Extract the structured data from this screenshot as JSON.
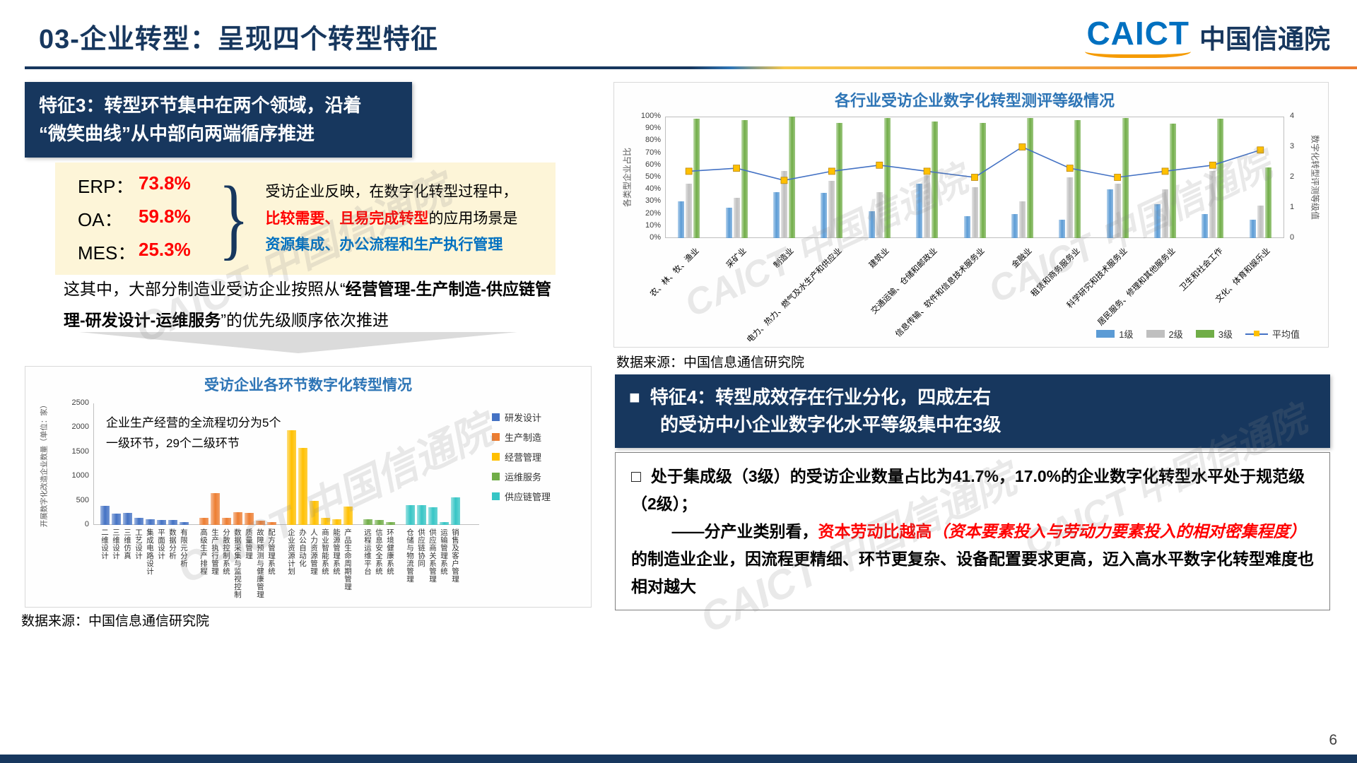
{
  "header": {
    "title": "03-企业转型：呈现四个转型特征",
    "logo_en": "CAICT",
    "logo_cn": "中国信通院"
  },
  "watermark_text": "CAICT 中国信通院",
  "left": {
    "feature3_line1": "特征3：转型环节集中在两个领域，沿着",
    "feature3_line2": "“微笑曲线”从中部向两端循序推进",
    "stats": [
      {
        "label": "ERP：",
        "value": "73.8%"
      },
      {
        "label": "OA：",
        "value": "59.8%"
      },
      {
        "label": "MES：",
        "value": "25.3%"
      }
    ],
    "brace": "}",
    "desc_line1": "受访企业反映，在数字化转型过程中，",
    "desc_red": "比较需要、且易完成转型",
    "desc_mid": "的应用场景是",
    "desc_blue": "资源集成、办公流程和生产执行管理",
    "para_lead": "这其中，大部分制造业受访企业按照从“",
    "para_bold": "经营管理-生产制造-供应链管理-研发设计-运维服务",
    "para_tail": "”的优先级顺序依次推进",
    "source": "数据来源：中国信息通信研究院"
  },
  "right": {
    "source": "数据来源：中国信息通信研究院",
    "feature4_bullet": "■",
    "feature4_line1": "特征4：转型成效存在行业分化，四成左右",
    "feature4_line2": "的受访中小企业数字化水平等级集中在3级",
    "detail_bullet": "□",
    "detail_p1": "处于集成级（3级）的受访企业数量占比为41.7%，17.0%的企业数字化转型水平处于规范级（2级）；",
    "detail_p2_lead": "——分产业类别看，",
    "detail_p2_red": "资本劳动比越高",
    "detail_p2_red_paren": "（资本要素投入与劳动力要素投入的相对密集程度）",
    "detail_p2_rest": "的制造业企业，因流程更精细、环节更复杂、设备配置要求更高，迈入高水平数字化转型难度也相对越大",
    "page_number": "6"
  },
  "chart_data": [
    {
      "id": "industry-chart",
      "type": "bar",
      "title": "各行业受访企业数字化转型测评等级情况",
      "ylabel_left": "各类型企业占比",
      "ylabel_right": "数字化转型评测等级值",
      "ylim_left": [
        0,
        100
      ],
      "yticks_left": [
        "0%",
        "10%",
        "20%",
        "30%",
        "40%",
        "50%",
        "60%",
        "70%",
        "80%",
        "90%",
        "100%"
      ],
      "ylim_right": [
        0,
        4
      ],
      "yticks_right": [
        "0",
        "1",
        "2",
        "3",
        "4"
      ],
      "grid": false,
      "legend_position": "bottom-right",
      "categories": [
        "农、林、牧、渔业",
        "采矿业",
        "制造业",
        "电力、热力、燃气及水生产和供应业",
        "建筑业",
        "交通运输、仓储和邮政业",
        "信息传输、软件和信息技术服务业",
        "金融业",
        "租赁和商务服务业",
        "科学研究和技术服务业",
        "居民服务、修理和其他服务业",
        "卫生和社会工作",
        "文化、体育和娱乐业"
      ],
      "series": [
        {
          "name": "1级",
          "color": "#5B9BD5",
          "values": [
            30,
            25,
            38,
            37,
            22,
            45,
            18,
            20,
            15,
            40,
            28,
            20,
            15
          ]
        },
        {
          "name": "2级",
          "color": "#BFBFBF",
          "values": [
            45,
            33,
            55,
            47,
            38,
            52,
            42,
            30,
            50,
            45,
            40,
            55,
            27
          ]
        },
        {
          "name": "3级",
          "color": "#70AD47",
          "values": [
            98,
            97,
            100,
            95,
            99,
            96,
            95,
            99,
            97,
            99,
            94,
            98,
            58
          ]
        }
      ],
      "line_series": {
        "name": "平均值",
        "values": [
          2.2,
          2.3,
          1.9,
          2.2,
          2.4,
          2.2,
          2.0,
          3.0,
          2.3,
          2.0,
          2.2,
          2.4,
          2.9
        ],
        "line_color": "#4472C4",
        "marker_color": "#FFC000"
      },
      "legend": [
        {
          "name": "1级",
          "color": "#5B9BD5",
          "type": "bar"
        },
        {
          "name": "2级",
          "color": "#BFBFBF",
          "type": "bar"
        },
        {
          "name": "3级",
          "color": "#70AD47",
          "type": "bar"
        },
        {
          "name": "平均值",
          "color": "#FFC000",
          "type": "line",
          "line_color": "#4472C4"
        }
      ]
    },
    {
      "id": "process-chart",
      "type": "bar",
      "title": "受访企业各环节数字化转型情况",
      "annotation": "企业生产经营的全流程切分为5个\n一级环节，29个二级环节",
      "ylabel": "开展数字化改造企业数量（单位：家）",
      "ylim": [
        0,
        2500
      ],
      "yticks": [
        0,
        500,
        1000,
        1500,
        2000,
        2500
      ],
      "grid": false,
      "legend_position": "right",
      "legend": [
        {
          "name": "研发设计",
          "color": "#4472C4"
        },
        {
          "name": "生产制造",
          "color": "#ED7D31"
        },
        {
          "name": "经营管理",
          "color": "#FFC000"
        },
        {
          "name": "运维服务",
          "color": "#70AD47"
        },
        {
          "name": "供应链管理",
          "color": "#36C5C5"
        }
      ],
      "groups": [
        {
          "name": "研发设计",
          "color": "#4472C4",
          "items": [
            {
              "label": "二维设计",
              "value": 390
            },
            {
              "label": "三维设计",
              "value": 235
            },
            {
              "label": "三维仿真",
              "value": 250
            },
            {
              "label": "工艺设计",
              "value": 150
            },
            {
              "label": "集成电路设计",
              "value": 110
            },
            {
              "label": "平面设计",
              "value": 100
            },
            {
              "label": "数据分析",
              "value": 95
            },
            {
              "label": "有限元分析",
              "value": 55
            }
          ]
        },
        {
          "name": "生产制造",
          "color": "#ED7D31",
          "items": [
            {
              "label": "高级生产排程",
              "value": 150
            },
            {
              "label": "生产执行管理",
              "value": 660
            },
            {
              "label": "分散控制系统",
              "value": 150
            },
            {
              "label": "数据采集与监视控制",
              "value": 260
            },
            {
              "label": "质量管理",
              "value": 245
            },
            {
              "label": "故障预测与健康管理",
              "value": 90
            },
            {
              "label": "配方管理系统",
              "value": 60
            }
          ]
        },
        {
          "name": "经营管理",
          "color": "#FFC000",
          "items": [
            {
              "label": "企业资源计划",
              "value": 1950
            },
            {
              "label": "办公自动化",
              "value": 1580
            },
            {
              "label": "人力资源管理",
              "value": 500
            },
            {
              "label": "商业智能系统",
              "value": 150
            },
            {
              "label": "能源管理系统",
              "value": 120
            },
            {
              "label": "产品生命周期管理",
              "value": 380
            }
          ]
        },
        {
          "name": "运维服务",
          "color": "#70AD47",
          "items": [
            {
              "label": "远程运维平台",
              "value": 120
            },
            {
              "label": "信息安全系统",
              "value": 105
            },
            {
              "label": "环境健康系统",
              "value": 60
            }
          ]
        },
        {
          "name": "供应链管理",
          "color": "#36C5C5",
          "items": [
            {
              "label": "仓储与物流管理",
              "value": 400
            },
            {
              "label": "供应链协同",
              "value": 400
            },
            {
              "label": "供应商关系管理",
              "value": 370
            },
            {
              "label": "运输管理系统",
              "value": 60
            },
            {
              "label": "销售及客户管理",
              "value": 570
            }
          ]
        }
      ]
    }
  ]
}
